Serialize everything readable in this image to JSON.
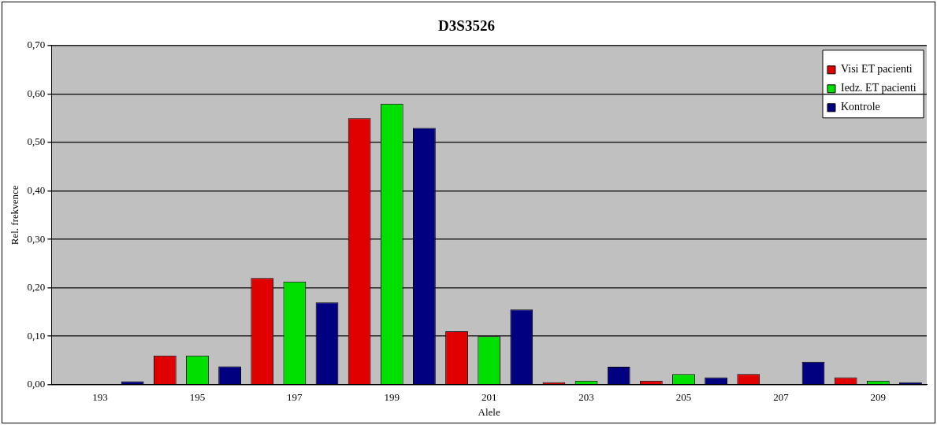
{
  "chart_data": {
    "type": "bar",
    "title": "D3S3526",
    "xlabel": "Alele",
    "ylabel": "Rel. frekvence",
    "categories": [
      "193",
      "195",
      "197",
      "199",
      "201",
      "203",
      "205",
      "207",
      "209"
    ],
    "series": [
      {
        "name": "Visi ET pacienti",
        "color": "#e00000",
        "values": [
          0,
          0.06,
          0.22,
          0.55,
          0.11,
          0.005,
          0.008,
          0.022,
          0.015
        ]
      },
      {
        "name": "Iedz. ET pacienti",
        "color": "#00e000",
        "values": [
          0,
          0.06,
          0.213,
          0.58,
          0.1,
          0.008,
          0.022,
          0,
          0.008
        ]
      },
      {
        "name": "Kontrole",
        "color": "#000080",
        "values": [
          0.007,
          0.038,
          0.17,
          0.53,
          0.155,
          0.037,
          0.015,
          0.047,
          0.005
        ]
      }
    ],
    "ylim": [
      0,
      0.7
    ],
    "yticks": [
      {
        "value": 0,
        "label": "0,00"
      },
      {
        "value": 0.1,
        "label": "0,10"
      },
      {
        "value": 0.2,
        "label": "0,20"
      },
      {
        "value": 0.3,
        "label": "0,30"
      },
      {
        "value": 0.4,
        "label": "0,40"
      },
      {
        "value": 0.5,
        "label": "0,50"
      },
      {
        "value": 0.6,
        "label": "0,60"
      },
      {
        "value": 0.7,
        "label": "0,70"
      }
    ],
    "grid": "y",
    "legend": "top right"
  }
}
